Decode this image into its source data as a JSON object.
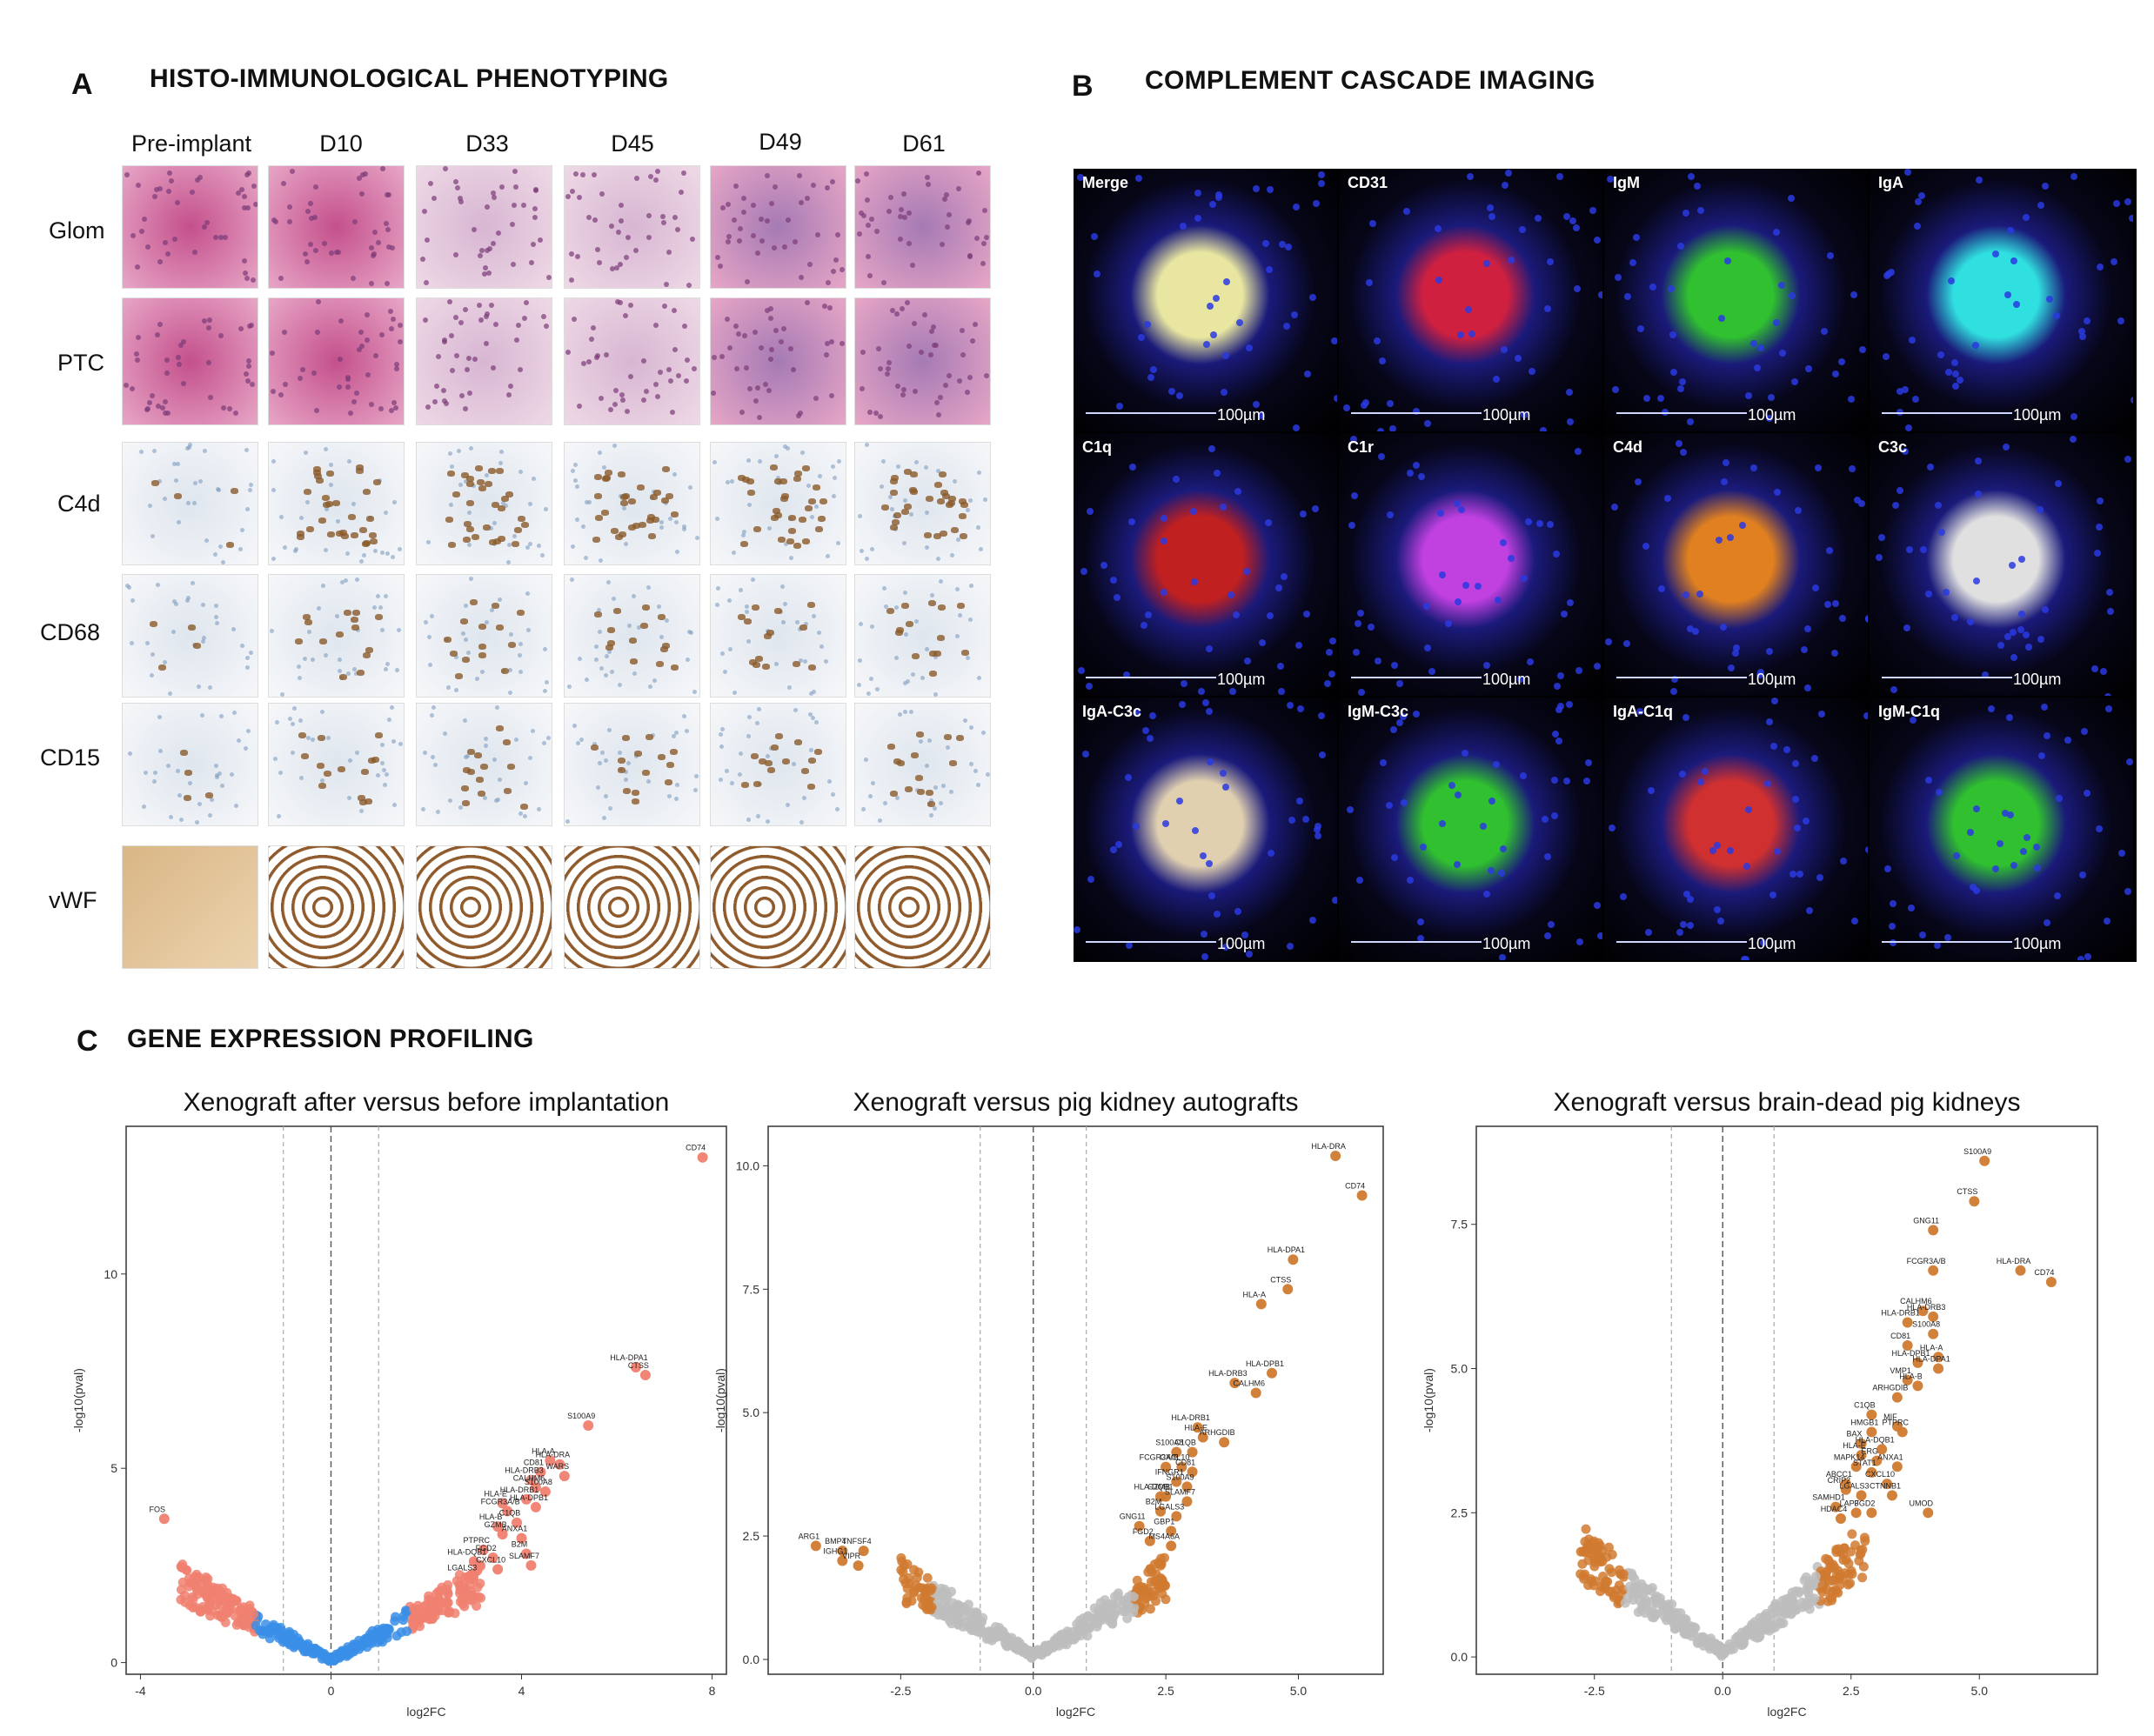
{
  "panelA": {
    "letter": "A",
    "title": "HISTO-IMMUNOLOGICAL PHENOTYPING",
    "columns": [
      "Pre-implant",
      "D10",
      "D33",
      "D45",
      "D49",
      "D61"
    ],
    "rows": [
      {
        "label": "Glom",
        "stain": "he"
      },
      {
        "label": "PTC",
        "stain": "he"
      },
      {
        "label": "C4d",
        "stain": "ihc"
      },
      {
        "label": "CD68",
        "stain": "ihc"
      },
      {
        "label": "CD15",
        "stain": "ihc"
      },
      {
        "label": "vWF",
        "stain": "vwf"
      }
    ],
    "colors": {
      "he_bg": "#c879a8",
      "he_dark": "#7a3b78",
      "ihc_bg": "#e9edf2",
      "ihc_brown": "#8a5a2b",
      "vwf_brown": "#8f5a2c"
    }
  },
  "panelB": {
    "letter": "B",
    "title": "COMPLEMENT CASCADE IMAGING",
    "scale_label": "100µm",
    "tiles": [
      {
        "label": "Merge",
        "tint": "#e8e6a0"
      },
      {
        "label": "CD31",
        "tint": "#d02040"
      },
      {
        "label": "IgM",
        "tint": "#30c030"
      },
      {
        "label": "IgA",
        "tint": "#30e0e0"
      },
      {
        "label": "C1q",
        "tint": "#c02020"
      },
      {
        "label": "C1r",
        "tint": "#c040e0"
      },
      {
        "label": "C4d",
        "tint": "#e08020"
      },
      {
        "label": "C3c",
        "tint": "#e0e0e0"
      },
      {
        "label": "IgA-C3c",
        "tint": "#e0d0b0"
      },
      {
        "label": "IgM-C3c",
        "tint": "#30c030"
      },
      {
        "label": "IgA-C1q",
        "tint": "#d03030"
      },
      {
        "label": "IgM-C1q",
        "tint": "#30c030"
      }
    ]
  },
  "panelC": {
    "letter": "C",
    "title": "GENE EXPRESSION PROFILING"
  },
  "chart_data": [
    {
      "type": "scatter",
      "title": "Xenograft after versus before implantation",
      "xlabel": "log2FC",
      "ylabel": "-log10(pval)",
      "xlim": [
        -4.3,
        8.3
      ],
      "ylim": [
        -0.3,
        13.8
      ],
      "xticks": [
        -4,
        0,
        4,
        8
      ],
      "yticks": [
        0,
        5,
        10
      ],
      "vlines_dashed": [
        0
      ],
      "vlines_dotted": [
        -1,
        1
      ],
      "sig_color": "#f08070",
      "ns_color": "#3a8ee6",
      "labeled_points": [
        {
          "gene": "CD74",
          "x": 7.8,
          "y": 13.0
        },
        {
          "gene": "FOS",
          "x": -3.5,
          "y": 3.7
        },
        {
          "gene": "HLA-DPA1",
          "x": 6.4,
          "y": 7.6
        },
        {
          "gene": "CTSS",
          "x": 6.6,
          "y": 7.4
        },
        {
          "gene": "S100A9",
          "x": 5.4,
          "y": 6.1
        },
        {
          "gene": "HLA-A",
          "x": 4.6,
          "y": 5.2
        },
        {
          "gene": "HLA-DRA",
          "x": 4.8,
          "y": 5.1
        },
        {
          "gene": "CD81",
          "x": 4.4,
          "y": 4.9
        },
        {
          "gene": "WARS",
          "x": 4.9,
          "y": 4.8
        },
        {
          "gene": "HLA-DRB3",
          "x": 4.2,
          "y": 4.7
        },
        {
          "gene": "CALHM6",
          "x": 4.3,
          "y": 4.5
        },
        {
          "gene": "S100A8",
          "x": 4.5,
          "y": 4.4
        },
        {
          "gene": "HLA-E",
          "x": 3.6,
          "y": 4.1
        },
        {
          "gene": "HLA-DRB1",
          "x": 4.1,
          "y": 4.2
        },
        {
          "gene": "HLA-DPB1",
          "x": 4.3,
          "y": 4.0
        },
        {
          "gene": "FCGR3A/B",
          "x": 3.7,
          "y": 3.9
        },
        {
          "gene": "HLA-B",
          "x": 3.5,
          "y": 3.5
        },
        {
          "gene": "C1QB",
          "x": 3.9,
          "y": 3.6
        },
        {
          "gene": "GZMB",
          "x": 3.6,
          "y": 3.3
        },
        {
          "gene": "ANXA1",
          "x": 4.0,
          "y": 3.2
        },
        {
          "gene": "PTPRC",
          "x": 3.2,
          "y": 2.9
        },
        {
          "gene": "B2M",
          "x": 4.1,
          "y": 2.8
        },
        {
          "gene": "FGD2",
          "x": 3.4,
          "y": 2.7
        },
        {
          "gene": "HLA-DQB1",
          "x": 3.0,
          "y": 2.6
        },
        {
          "gene": "SLAMF7",
          "x": 4.2,
          "y": 2.5
        },
        {
          "gene": "CXCL10",
          "x": 3.5,
          "y": 2.4
        },
        {
          "gene": "LGALS3",
          "x": 2.9,
          "y": 2.2
        }
      ]
    },
    {
      "type": "scatter",
      "title": "Xenograft versus pig kidney autografts",
      "xlabel": "log2FC",
      "ylabel": "-log10(pval)",
      "xlim": [
        -5.0,
        6.6
      ],
      "ylim": [
        -0.3,
        10.8
      ],
      "xticks": [
        -2.5,
        0.0,
        2.5,
        5.0
      ],
      "yticks": [
        0.0,
        2.5,
        5.0,
        7.5,
        10.0
      ],
      "vlines_dashed": [
        0
      ],
      "vlines_dotted": [
        -1,
        1
      ],
      "sig_color": "#d07a30",
      "ns_color": "#bdbdbd",
      "labeled_points": [
        {
          "gene": "HLA-DRA",
          "x": 5.7,
          "y": 10.2
        },
        {
          "gene": "CD74",
          "x": 6.2,
          "y": 9.4
        },
        {
          "gene": "HLA-DPA1",
          "x": 4.9,
          "y": 8.1
        },
        {
          "gene": "CTSS",
          "x": 4.8,
          "y": 7.5
        },
        {
          "gene": "HLA-A",
          "x": 4.3,
          "y": 7.2
        },
        {
          "gene": "HLA-DPB1",
          "x": 4.5,
          "y": 5.8
        },
        {
          "gene": "HLA-DRB3",
          "x": 3.8,
          "y": 5.6
        },
        {
          "gene": "CALHM6",
          "x": 4.2,
          "y": 5.4
        },
        {
          "gene": "HLA-DRB1",
          "x": 3.1,
          "y": 4.7
        },
        {
          "gene": "HLA-E",
          "x": 3.2,
          "y": 4.5
        },
        {
          "gene": "ARHGDIB",
          "x": 3.6,
          "y": 4.4
        },
        {
          "gene": "S100A8",
          "x": 2.7,
          "y": 4.2
        },
        {
          "gene": "C1QB",
          "x": 3.0,
          "y": 4.2
        },
        {
          "gene": "FCGR3A/B",
          "x": 2.5,
          "y": 3.9
        },
        {
          "gene": "CXCL10",
          "x": 2.8,
          "y": 3.9
        },
        {
          "gene": "CD81",
          "x": 3.0,
          "y": 3.8
        },
        {
          "gene": "IFNGR1",
          "x": 2.7,
          "y": 3.6
        },
        {
          "gene": "S100A9",
          "x": 2.9,
          "y": 3.5
        },
        {
          "gene": "HLA-DQB1",
          "x": 2.4,
          "y": 3.3
        },
        {
          "gene": "GZMB",
          "x": 2.5,
          "y": 3.3
        },
        {
          "gene": "SLAMF7",
          "x": 2.9,
          "y": 3.2
        },
        {
          "gene": "B2M",
          "x": 2.4,
          "y": 3.0
        },
        {
          "gene": "LGALS3",
          "x": 2.7,
          "y": 2.9
        },
        {
          "gene": "GNG11",
          "x": 2.0,
          "y": 2.7
        },
        {
          "gene": "GBP1",
          "x": 2.6,
          "y": 2.6
        },
        {
          "gene": "FGD2",
          "x": 2.2,
          "y": 2.4
        },
        {
          "gene": "MS4A6A",
          "x": 2.6,
          "y": 2.3
        },
        {
          "gene": "ARG1",
          "x": -4.1,
          "y": 2.3
        },
        {
          "gene": "BMP4",
          "x": -3.6,
          "y": 2.2
        },
        {
          "gene": "TNFSF4",
          "x": -3.2,
          "y": 2.2
        },
        {
          "gene": "IGHG1",
          "x": -3.6,
          "y": 2.0
        },
        {
          "gene": "VIPR",
          "x": -3.3,
          "y": 1.9
        }
      ]
    },
    {
      "type": "scatter",
      "title": "Xenograft versus brain-dead pig kidneys",
      "xlabel": "log2FC",
      "ylabel": "-log10(pval)",
      "xlim": [
        -4.8,
        7.3
      ],
      "ylim": [
        -0.3,
        9.2
      ],
      "xticks": [
        -2.5,
        0.0,
        2.5,
        5.0
      ],
      "yticks": [
        0.0,
        2.5,
        5.0,
        7.5
      ],
      "vlines_dashed": [
        0
      ],
      "vlines_dotted": [
        -1,
        1
      ],
      "sig_color": "#d07a30",
      "ns_color": "#bdbdbd",
      "labeled_points": [
        {
          "gene": "S100A9",
          "x": 5.1,
          "y": 8.6
        },
        {
          "gene": "CTSS",
          "x": 4.9,
          "y": 7.9
        },
        {
          "gene": "GNG11",
          "x": 4.1,
          "y": 7.4
        },
        {
          "gene": "FCGR3A/B",
          "x": 4.1,
          "y": 6.7
        },
        {
          "gene": "HLA-DRA",
          "x": 5.8,
          "y": 6.7
        },
        {
          "gene": "CD74",
          "x": 6.4,
          "y": 6.5
        },
        {
          "gene": "CALHM6",
          "x": 3.9,
          "y": 6.0
        },
        {
          "gene": "HLA-DRB3",
          "x": 4.1,
          "y": 5.9
        },
        {
          "gene": "HLA-DRB1",
          "x": 3.6,
          "y": 5.8
        },
        {
          "gene": "S100A8",
          "x": 4.1,
          "y": 5.6
        },
        {
          "gene": "CD81",
          "x": 3.6,
          "y": 5.4
        },
        {
          "gene": "HLA-A",
          "x": 4.2,
          "y": 5.2
        },
        {
          "gene": "HLA-DPB1",
          "x": 3.8,
          "y": 5.1
        },
        {
          "gene": "HLA-DPA1",
          "x": 4.2,
          "y": 5.0
        },
        {
          "gene": "VMP1",
          "x": 3.6,
          "y": 4.8
        },
        {
          "gene": "HLA-B",
          "x": 3.8,
          "y": 4.7
        },
        {
          "gene": "ARHGDIB",
          "x": 3.4,
          "y": 4.5
        },
        {
          "gene": "C1QB",
          "x": 2.9,
          "y": 4.2
        },
        {
          "gene": "MIF",
          "x": 3.4,
          "y": 4.0
        },
        {
          "gene": "HMGB1",
          "x": 2.9,
          "y": 3.9
        },
        {
          "gene": "PTPRC",
          "x": 3.5,
          "y": 3.9
        },
        {
          "gene": "BAX",
          "x": 2.7,
          "y": 3.7
        },
        {
          "gene": "HLA-DQB1",
          "x": 3.1,
          "y": 3.6
        },
        {
          "gene": "HLA-E",
          "x": 2.7,
          "y": 3.5
        },
        {
          "gene": "ERG",
          "x": 3.0,
          "y": 3.4
        },
        {
          "gene": "MAPK14",
          "x": 2.6,
          "y": 3.3
        },
        {
          "gene": "ANXA1",
          "x": 3.4,
          "y": 3.3
        },
        {
          "gene": "STAT1",
          "x": 2.9,
          "y": 3.2
        },
        {
          "gene": "ABCC1",
          "x": 2.4,
          "y": 3.0
        },
        {
          "gene": "CXCL10",
          "x": 3.2,
          "y": 3.0
        },
        {
          "gene": "CRIP2",
          "x": 2.4,
          "y": 2.9
        },
        {
          "gene": "LGALS3",
          "x": 2.7,
          "y": 2.8
        },
        {
          "gene": "CTNNB1",
          "x": 3.3,
          "y": 2.8
        },
        {
          "gene": "SAMHD1",
          "x": 2.2,
          "y": 2.6
        },
        {
          "gene": "LAP3",
          "x": 2.6,
          "y": 2.5
        },
        {
          "gene": "FGD2",
          "x": 2.9,
          "y": 2.5
        },
        {
          "gene": "UMOD",
          "x": 4.0,
          "y": 2.5
        },
        {
          "gene": "HDAC4",
          "x": 2.3,
          "y": 2.4
        }
      ]
    }
  ]
}
